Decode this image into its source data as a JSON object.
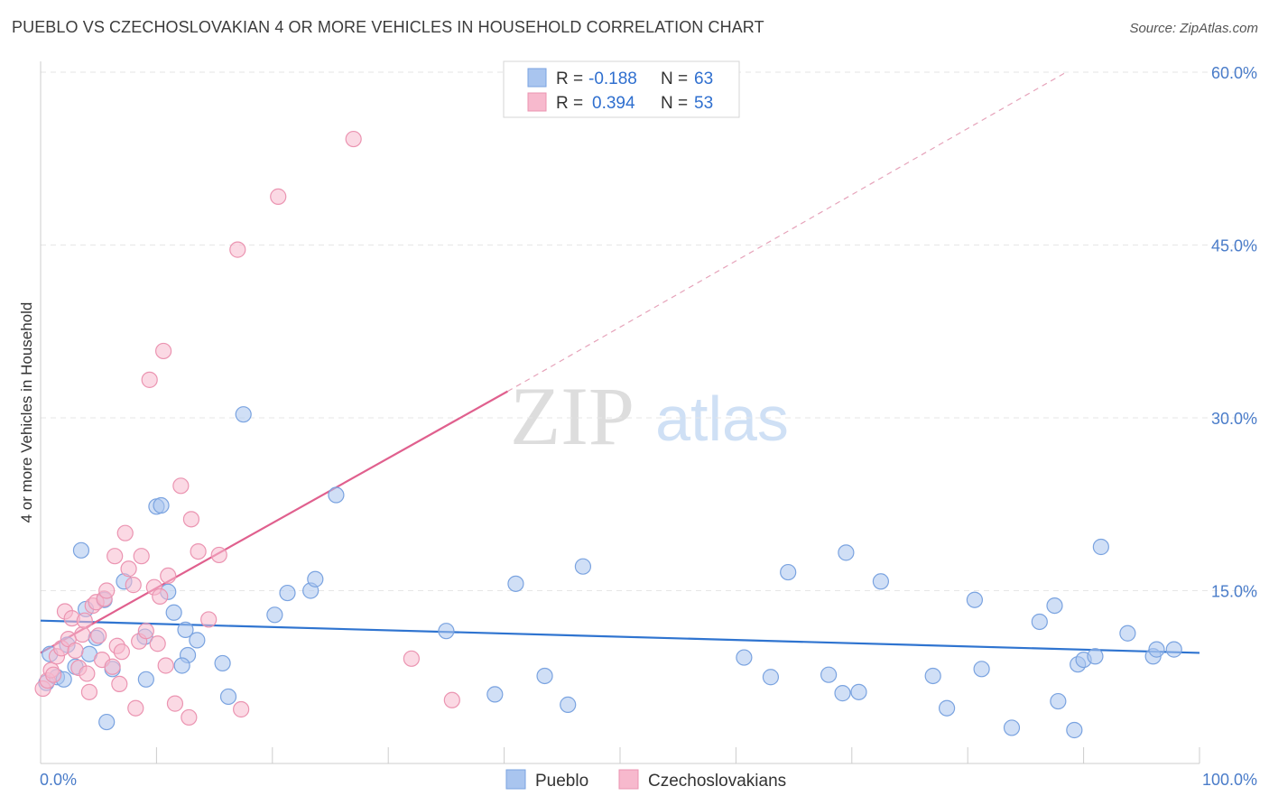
{
  "title": "PUEBLO VS CZECHOSLOVAKIAN 4 OR MORE VEHICLES IN HOUSEHOLD CORRELATION CHART",
  "source": "Source: ZipAtlas.com",
  "watermark": {
    "zip": "ZIP",
    "atlas": "atlas"
  },
  "chart_data": {
    "type": "scatter",
    "xlabel": "",
    "ylabel": "4 or more Vehicles in Household",
    "xlim": [
      0,
      100
    ],
    "ylim": [
      0,
      60
    ],
    "x_tick_labels": [
      "0.0%",
      "100.0%"
    ],
    "y_ticks": [
      15,
      30,
      45,
      60
    ],
    "y_tick_labels": [
      "15.0%",
      "30.0%",
      "45.0%",
      "60.0%"
    ],
    "grid": true,
    "legend_position": "top-center",
    "series": [
      {
        "name": "Pueblo",
        "color": "#a9c5ef",
        "edge": "#7aa3e0",
        "line_color": "#2f74d0",
        "r_label": "R = ",
        "r_value": "-0.188",
        "n_label": "N = ",
        "n_value": "63",
        "trend": {
          "x0": 0,
          "y0": 12.4,
          "x1": 100,
          "y1": 9.6
        },
        "points": [
          [
            0.5,
            7.0
          ],
          [
            0.8,
            9.5
          ],
          [
            1.4,
            7.5
          ],
          [
            2.0,
            7.3
          ],
          [
            2.3,
            10.3
          ],
          [
            3.0,
            8.4
          ],
          [
            3.5,
            18.5
          ],
          [
            3.9,
            13.4
          ],
          [
            4.2,
            9.5
          ],
          [
            4.8,
            10.9
          ],
          [
            5.5,
            14.2
          ],
          [
            5.7,
            3.6
          ],
          [
            6.2,
            8.2
          ],
          [
            7.2,
            15.8
          ],
          [
            9.0,
            11.0
          ],
          [
            9.1,
            7.3
          ],
          [
            10.0,
            22.3
          ],
          [
            10.4,
            22.4
          ],
          [
            11.0,
            14.9
          ],
          [
            11.5,
            13.1
          ],
          [
            12.5,
            11.6
          ],
          [
            12.7,
            9.4
          ],
          [
            12.2,
            8.5
          ],
          [
            13.5,
            10.7
          ],
          [
            15.7,
            8.7
          ],
          [
            16.2,
            5.8
          ],
          [
            17.5,
            30.3
          ],
          [
            20.2,
            12.9
          ],
          [
            21.3,
            14.8
          ],
          [
            23.3,
            15.0
          ],
          [
            23.7,
            16.0
          ],
          [
            25.5,
            23.3
          ],
          [
            35.0,
            11.5
          ],
          [
            39.2,
            6.0
          ],
          [
            41.0,
            15.6
          ],
          [
            43.5,
            7.6
          ],
          [
            45.5,
            5.1
          ],
          [
            46.8,
            17.1
          ],
          [
            60.7,
            9.2
          ],
          [
            63.0,
            7.5
          ],
          [
            64.5,
            16.6
          ],
          [
            68.0,
            7.7
          ],
          [
            69.2,
            6.1
          ],
          [
            69.5,
            18.3
          ],
          [
            70.6,
            6.2
          ],
          [
            72.5,
            15.8
          ],
          [
            77.0,
            7.6
          ],
          [
            78.2,
            4.8
          ],
          [
            80.6,
            14.2
          ],
          [
            81.2,
            8.2
          ],
          [
            83.8,
            3.1
          ],
          [
            86.2,
            12.3
          ],
          [
            87.5,
            13.7
          ],
          [
            87.8,
            5.4
          ],
          [
            89.2,
            2.9
          ],
          [
            89.5,
            8.6
          ],
          [
            90.0,
            9.0
          ],
          [
            91.0,
            9.3
          ],
          [
            91.5,
            18.8
          ],
          [
            93.8,
            11.3
          ],
          [
            96.0,
            9.3
          ],
          [
            96.3,
            9.9
          ],
          [
            97.8,
            9.9
          ]
        ]
      },
      {
        "name": "Czechoslovakians",
        "color": "#f7b9cd",
        "edge": "#eb94b1",
        "line_color": "#e0608e",
        "r_label": "R = ",
        "r_value": "0.394",
        "n_label": "N = ",
        "n_value": "53",
        "trend": {
          "x0": 0,
          "y0": 9.6,
          "x1": 40.3,
          "y1": 32.3
        },
        "trend_ext": {
          "x0": 40.3,
          "y0": 32.3,
          "x1": 88.5,
          "y1": 60.0
        },
        "points": [
          [
            0.2,
            6.5
          ],
          [
            0.6,
            7.2
          ],
          [
            0.9,
            8.1
          ],
          [
            1.1,
            7.7
          ],
          [
            1.4,
            9.3
          ],
          [
            1.8,
            10.0
          ],
          [
            2.1,
            13.2
          ],
          [
            2.4,
            10.8
          ],
          [
            2.7,
            12.6
          ],
          [
            3.0,
            9.8
          ],
          [
            3.3,
            8.3
          ],
          [
            3.6,
            11.2
          ],
          [
            3.8,
            12.4
          ],
          [
            4.0,
            7.8
          ],
          [
            4.2,
            6.2
          ],
          [
            4.5,
            13.7
          ],
          [
            4.8,
            14.0
          ],
          [
            5.0,
            11.1
          ],
          [
            5.3,
            9.0
          ],
          [
            5.5,
            14.3
          ],
          [
            5.7,
            15.0
          ],
          [
            6.2,
            8.4
          ],
          [
            6.4,
            18.0
          ],
          [
            6.6,
            10.2
          ],
          [
            6.8,
            6.9
          ],
          [
            7.0,
            9.7
          ],
          [
            7.3,
            20.0
          ],
          [
            7.6,
            16.9
          ],
          [
            8.0,
            15.5
          ],
          [
            8.2,
            4.8
          ],
          [
            8.5,
            10.6
          ],
          [
            8.7,
            18.0
          ],
          [
            9.1,
            11.5
          ],
          [
            9.4,
            33.3
          ],
          [
            9.8,
            15.3
          ],
          [
            10.1,
            10.4
          ],
          [
            10.3,
            14.5
          ],
          [
            10.6,
            35.8
          ],
          [
            10.8,
            8.5
          ],
          [
            11.0,
            16.3
          ],
          [
            11.6,
            5.2
          ],
          [
            12.1,
            24.1
          ],
          [
            12.8,
            4.0
          ],
          [
            13.0,
            21.2
          ],
          [
            13.6,
            18.4
          ],
          [
            14.5,
            12.5
          ],
          [
            15.4,
            18.1
          ],
          [
            17.0,
            44.6
          ],
          [
            17.3,
            4.7
          ],
          [
            20.5,
            49.2
          ],
          [
            27.0,
            54.2
          ],
          [
            32.0,
            9.1
          ],
          [
            35.5,
            5.5
          ]
        ]
      }
    ]
  }
}
